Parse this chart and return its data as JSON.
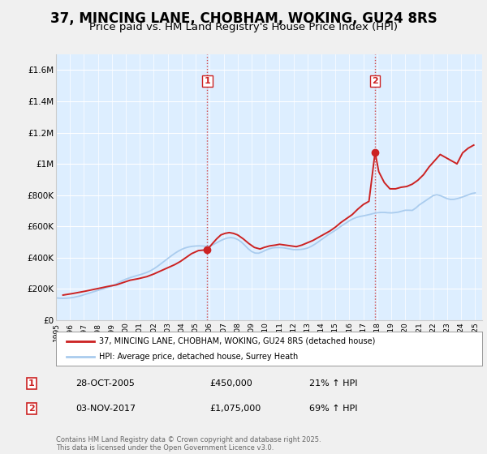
{
  "title": "37, MINCING LANE, CHOBHAM, WOKING, GU24 8RS",
  "subtitle": "Price paid vs. HM Land Registry's House Price Index (HPI)",
  "title_fontsize": 12,
  "subtitle_fontsize": 9.5,
  "xlim_start": 1995.0,
  "xlim_end": 2025.5,
  "ylim": [
    0,
    1700000
  ],
  "yticks": [
    0,
    200000,
    400000,
    600000,
    800000,
    1000000,
    1200000,
    1400000,
    1600000
  ],
  "ytick_labels": [
    "£0",
    "£200K",
    "£400K",
    "£600K",
    "£800K",
    "£1M",
    "£1.2M",
    "£1.4M",
    "£1.6M"
  ],
  "xtick_labels": [
    "1995",
    "1996",
    "1997",
    "1998",
    "1999",
    "2000",
    "2001",
    "2002",
    "2003",
    "2004",
    "2005",
    "2006",
    "2007",
    "2008",
    "2009",
    "2010",
    "2011",
    "2012",
    "2013",
    "2014",
    "2015",
    "2016",
    "2017",
    "2018",
    "2019",
    "2020",
    "2021",
    "2022",
    "2023",
    "2024",
    "2025"
  ],
  "hpi_color": "#aaccee",
  "price_color": "#cc2222",
  "vline_color": "#cc2222",
  "marker1_x": 2005.83,
  "marker1_y": 450000,
  "marker1_label": "1",
  "marker2_x": 2017.84,
  "marker2_y": 1075000,
  "marker2_label": "2",
  "legend_line1": "37, MINCING LANE, CHOBHAM, WOKING, GU24 8RS (detached house)",
  "legend_line2": "HPI: Average price, detached house, Surrey Heath",
  "table_data": [
    [
      "1",
      "28-OCT-2005",
      "£450,000",
      "21% ↑ HPI"
    ],
    [
      "2",
      "03-NOV-2017",
      "£1,075,000",
      "69% ↑ HPI"
    ]
  ],
  "footer": "Contains HM Land Registry data © Crown copyright and database right 2025.\nThis data is licensed under the Open Government Licence v3.0.",
  "hpi_data": {
    "years": [
      1995.0,
      1995.25,
      1995.5,
      1995.75,
      1996.0,
      1996.25,
      1996.5,
      1996.75,
      1997.0,
      1997.25,
      1997.5,
      1997.75,
      1998.0,
      1998.25,
      1998.5,
      1998.75,
      1999.0,
      1999.25,
      1999.5,
      1999.75,
      2000.0,
      2000.25,
      2000.5,
      2000.75,
      2001.0,
      2001.25,
      2001.5,
      2001.75,
      2002.0,
      2002.25,
      2002.5,
      2002.75,
      2003.0,
      2003.25,
      2003.5,
      2003.75,
      2004.0,
      2004.25,
      2004.5,
      2004.75,
      2005.0,
      2005.25,
      2005.5,
      2005.75,
      2006.0,
      2006.25,
      2006.5,
      2006.75,
      2007.0,
      2007.25,
      2007.5,
      2007.75,
      2008.0,
      2008.25,
      2008.5,
      2008.75,
      2009.0,
      2009.25,
      2009.5,
      2009.75,
      2010.0,
      2010.25,
      2010.5,
      2010.75,
      2011.0,
      2011.25,
      2011.5,
      2011.75,
      2012.0,
      2012.25,
      2012.5,
      2012.75,
      2013.0,
      2013.25,
      2013.5,
      2013.75,
      2014.0,
      2014.25,
      2014.5,
      2014.75,
      2015.0,
      2015.25,
      2015.5,
      2015.75,
      2016.0,
      2016.25,
      2016.5,
      2016.75,
      2017.0,
      2017.25,
      2017.5,
      2017.75,
      2018.0,
      2018.25,
      2018.5,
      2018.75,
      2019.0,
      2019.25,
      2019.5,
      2019.75,
      2020.0,
      2020.25,
      2020.5,
      2020.75,
      2021.0,
      2021.25,
      2021.5,
      2021.75,
      2022.0,
      2022.25,
      2022.5,
      2022.75,
      2023.0,
      2023.25,
      2023.5,
      2023.75,
      2024.0,
      2024.25,
      2024.5,
      2024.75,
      2025.0
    ],
    "values": [
      142000,
      140000,
      139000,
      140000,
      142000,
      145000,
      150000,
      155000,
      162000,
      169000,
      176000,
      183000,
      190000,
      197000,
      204000,
      210000,
      218000,
      228000,
      240000,
      252000,
      262000,
      270000,
      277000,
      284000,
      290000,
      297000,
      305000,
      315000,
      328000,
      343000,
      360000,
      377000,
      394000,
      411000,
      427000,
      441000,
      453000,
      462000,
      468000,
      472000,
      474000,
      475000,
      474000,
      472000,
      474000,
      483000,
      495000,
      507000,
      517000,
      525000,
      528000,
      525000,
      516000,
      501000,
      480000,
      457000,
      439000,
      429000,
      428000,
      436000,
      447000,
      456000,
      462000,
      464000,
      464000,
      463000,
      459000,
      455000,
      451000,
      451000,
      452000,
      455000,
      461000,
      471000,
      484000,
      499000,
      515000,
      531000,
      547000,
      561000,
      575000,
      591000,
      607000,
      621000,
      636000,
      648000,
      657000,
      663000,
      667000,
      672000,
      677000,
      683000,
      687000,
      689000,
      689000,
      687000,
      686000,
      688000,
      691000,
      697000,
      703000,
      703000,
      702000,
      717000,
      737000,
      752000,
      767000,
      782000,
      797000,
      802000,
      797000,
      787000,
      777000,
      772000,
      773000,
      778000,
      785000,
      793000,
      801000,
      810000,
      814000
    ]
  },
  "price_data": {
    "years": [
      1995.5,
      1996.2,
      1997.1,
      1997.9,
      1998.7,
      1999.3,
      1999.8,
      2000.3,
      2000.9,
      2001.5,
      2002.0,
      2002.5,
      2003.0,
      2003.5,
      2003.9,
      2004.3,
      2004.7,
      2005.2,
      2005.83,
      2006.2,
      2006.5,
      2006.8,
      2007.1,
      2007.4,
      2007.7,
      2008.0,
      2008.4,
      2008.8,
      2009.2,
      2009.6,
      2009.9,
      2010.3,
      2010.7,
      2011.0,
      2011.4,
      2011.8,
      2012.2,
      2012.6,
      2013.0,
      2013.4,
      2013.8,
      2014.2,
      2014.6,
      2015.0,
      2015.4,
      2015.8,
      2016.2,
      2016.6,
      2017.0,
      2017.4,
      2017.84,
      2018.1,
      2018.5,
      2018.9,
      2019.3,
      2019.7,
      2020.1,
      2020.5,
      2020.9,
      2021.3,
      2021.7,
      2022.1,
      2022.5,
      2022.9,
      2023.3,
      2023.7,
      2024.1,
      2024.5,
      2024.9
    ],
    "values": [
      160000,
      170000,
      185000,
      200000,
      215000,
      225000,
      240000,
      255000,
      265000,
      278000,
      295000,
      315000,
      335000,
      355000,
      375000,
      400000,
      425000,
      445000,
      450000,
      490000,
      520000,
      545000,
      555000,
      560000,
      555000,
      545000,
      520000,
      490000,
      465000,
      455000,
      465000,
      475000,
      480000,
      485000,
      480000,
      475000,
      470000,
      480000,
      495000,
      510000,
      530000,
      550000,
      570000,
      595000,
      625000,
      650000,
      675000,
      710000,
      740000,
      760000,
      1075000,
      950000,
      880000,
      840000,
      840000,
      850000,
      855000,
      870000,
      895000,
      930000,
      980000,
      1020000,
      1060000,
      1040000,
      1020000,
      1000000,
      1070000,
      1100000,
      1120000
    ]
  },
  "plot_bg_color": "#ddeeff",
  "background_color": "#f0f0f0",
  "grid_color": "#ffffff"
}
